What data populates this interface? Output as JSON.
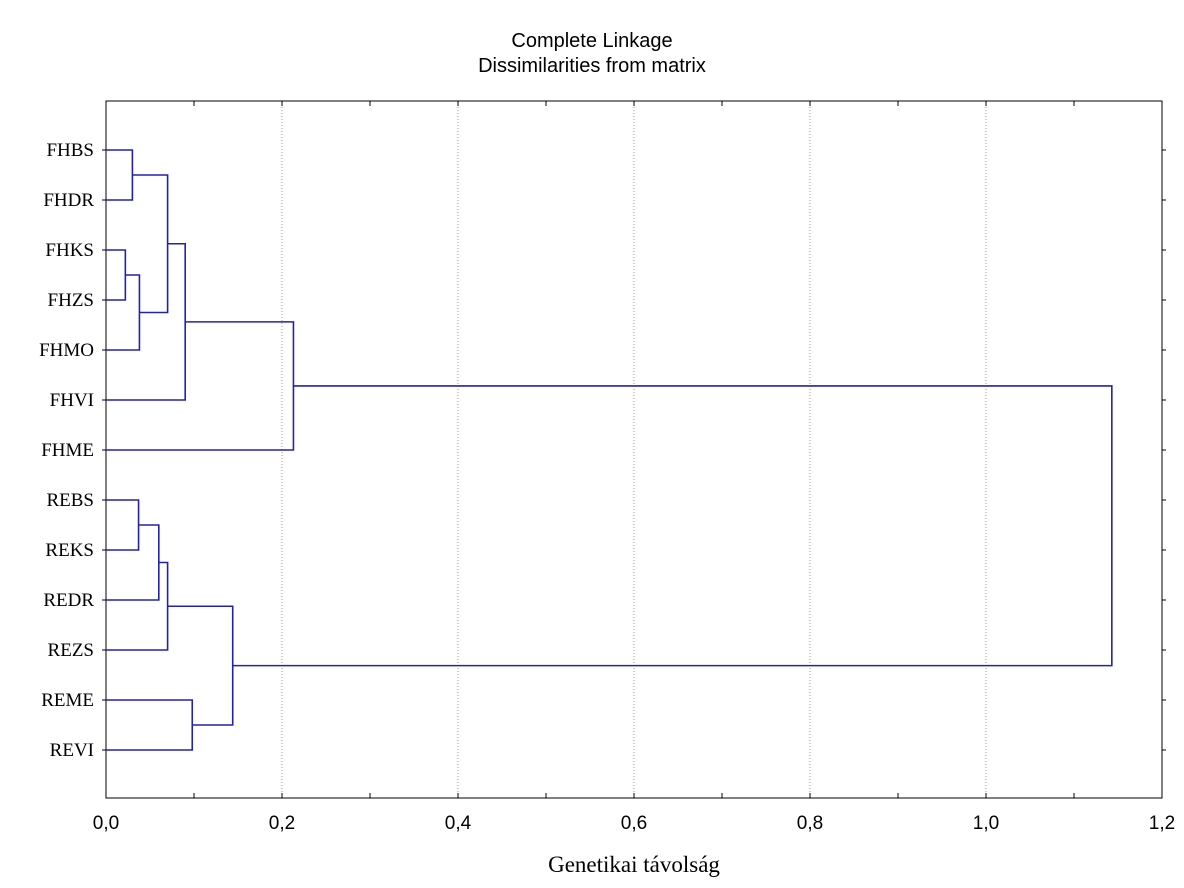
{
  "chart_data": {
    "type": "dendrogram",
    "title": "Complete Linkage",
    "subtitle": "Dissimilarities from matrix",
    "xlabel": "Genetikai távolság",
    "ylabel": "",
    "xlim": [
      0,
      1.2
    ],
    "x_ticks": [
      {
        "value": 0.0,
        "label": "0,0"
      },
      {
        "value": 0.2,
        "label": "0,2"
      },
      {
        "value": 0.4,
        "label": "0,4"
      },
      {
        "value": 0.6,
        "label": "0,6"
      },
      {
        "value": 0.8,
        "label": "0,8"
      },
      {
        "value": 1.0,
        "label": "1,0"
      },
      {
        "value": 1.2,
        "label": "1,2"
      }
    ],
    "grid": "vertical-dotted",
    "leaves": [
      "FHBS",
      "FHDR",
      "FHKS",
      "FHZS",
      "FHMO",
      "FHVI",
      "FHME",
      "REBS",
      "REKS",
      "REDR",
      "REZS",
      "REME",
      "REVI"
    ],
    "merges": [
      {
        "id": "c1",
        "children": [
          "FHKS",
          "FHZS"
        ],
        "height": 0.022
      },
      {
        "id": "c2",
        "children": [
          "FHBS",
          "FHDR"
        ],
        "height": 0.03
      },
      {
        "id": "c3",
        "children": [
          "REBS",
          "REKS"
        ],
        "height": 0.037
      },
      {
        "id": "c4",
        "children": [
          "c1",
          "FHMO"
        ],
        "height": 0.038
      },
      {
        "id": "c5",
        "children": [
          "c3",
          "REDR"
        ],
        "height": 0.06
      },
      {
        "id": "c6",
        "children": [
          "c2",
          "c4"
        ],
        "height": 0.07
      },
      {
        "id": "c7",
        "children": [
          "c5",
          "REZS"
        ],
        "height": 0.07
      },
      {
        "id": "c8",
        "children": [
          "c6",
          "FHVI"
        ],
        "height": 0.09
      },
      {
        "id": "c9",
        "children": [
          "REME",
          "REVI"
        ],
        "height": 0.098
      },
      {
        "id": "c10",
        "children": [
          "c7",
          "c9"
        ],
        "height": 0.144
      },
      {
        "id": "c11",
        "children": [
          "c8",
          "FHME"
        ],
        "height": 0.213
      },
      {
        "id": "c12",
        "children": [
          "c11",
          "c10"
        ],
        "height": 1.143
      }
    ],
    "line_color": "#2222aa"
  }
}
